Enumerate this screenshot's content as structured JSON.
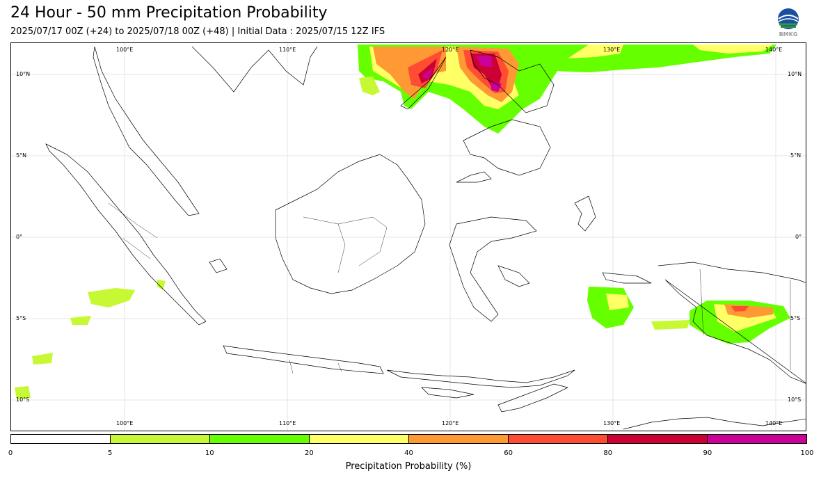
{
  "header": {
    "title": "24 Hour - 50 mm Precipitation Probability",
    "subtitle": "2025/07/17 00Z (+24) to 2025/07/18 00Z (+48) | Initial Data : 2025/07/15 12Z IFS",
    "logo_text": "BMKG"
  },
  "map": {
    "lon_labels": [
      "100°E",
      "110°E",
      "120°E",
      "130°E",
      "140°E"
    ],
    "lat_labels": [
      "10°N",
      "5°N",
      "0°",
      "5°S",
      "10°S"
    ],
    "grid": true,
    "lon_range": [
      93,
      142
    ],
    "lat_range": [
      12,
      -12
    ]
  },
  "colorbar": {
    "title": "Precipitation Probability (%)",
    "ticks": [
      "0",
      "5",
      "10",
      "20",
      "40",
      "60",
      "80",
      "90",
      "100"
    ],
    "colors": [
      "#ffffff",
      "#c6f934",
      "#66ff00",
      "#ffff66",
      "#ff9933",
      "#ff4d33",
      "#cc0033",
      "#cc0099"
    ]
  }
}
